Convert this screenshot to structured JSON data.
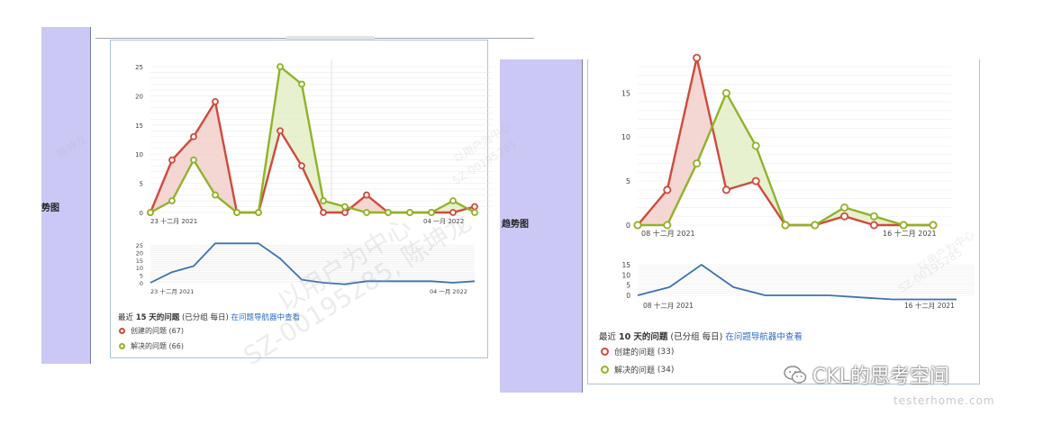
{
  "page": {
    "side_label_left": "势图",
    "side_label_right": "趋势图",
    "brand": "CKL的思考空间",
    "brand_sub": "testerhome.com"
  },
  "watermarks": [
    "以用户为中心",
    "SZ-00195285, 陈坤龙",
    "以用户为中心",
    "SZ-00195285",
    "陈坤龙",
    "以用户为中心",
    "SZ-00195285"
  ],
  "panels": [
    {
      "legend": {
        "title_prefix": "最近",
        "days": "15",
        "title_mid": "天的问题",
        "title_note": "(已分组 每日)",
        "link": "在问题导航器中查看",
        "created_label": "创建的问题",
        "created_count": "(67)",
        "resolved_label": "解决的问题",
        "resolved_count": "(66)"
      }
    },
    {
      "legend": {
        "title_prefix": "最近",
        "days": "10",
        "title_mid": "天的问题",
        "title_note": "(已分组 每日)",
        "link": "在问题导航器中查看",
        "created_label": "创建的问题",
        "created_count": "(33)",
        "resolved_label": "解决的问题",
        "resolved_count": "(34)"
      }
    }
  ],
  "chart_data": [
    {
      "type": "line",
      "x_tick_labels": [
        "23 十二月 2021",
        "04 一月 2022"
      ],
      "ylim": [
        0,
        25
      ],
      "y_ticks": [
        0,
        5,
        10,
        15,
        20,
        25
      ],
      "series": [
        {
          "name": "创建的问题",
          "color": "#d04a3c",
          "values": [
            0,
            9,
            13,
            19,
            0,
            0,
            14,
            8,
            0,
            0,
            3,
            0,
            0,
            0,
            0,
            1
          ]
        },
        {
          "name": "解决的问题",
          "color": "#8fb329",
          "values": [
            0,
            2,
            9,
            3,
            0,
            0,
            25,
            22,
            2,
            1,
            0,
            0,
            0,
            0,
            2,
            0
          ]
        }
      ]
    },
    {
      "type": "line",
      "x_tick_labels": [
        "23 十二月 2021",
        "04 一月 2022"
      ],
      "ylim": [
        0,
        25
      ],
      "y_ticks": [
        0,
        5,
        10,
        15,
        20,
        25
      ],
      "series": [
        {
          "color": "#3b74b0",
          "values": [
            0,
            7,
            11,
            26,
            26,
            26,
            16,
            2,
            0,
            -1,
            1,
            1,
            1,
            1,
            0,
            1
          ]
        }
      ]
    },
    {
      "type": "line",
      "x_tick_labels": [
        "08 十二月 2021",
        "16 十二月 2021"
      ],
      "ylim": [
        0,
        18
      ],
      "y_ticks": [
        0,
        5,
        10,
        15
      ],
      "series": [
        {
          "name": "创建的问题",
          "color": "#d04a3c",
          "values": [
            0,
            4,
            19,
            4,
            5,
            0,
            0,
            1,
            0,
            0,
            0
          ]
        },
        {
          "name": "解决的问题",
          "color": "#8fb329",
          "values": [
            0,
            0,
            7,
            15,
            9,
            0,
            0,
            2,
            1,
            0,
            0
          ]
        }
      ]
    },
    {
      "type": "line",
      "x_tick_labels": [
        "08 十二月 2021",
        "16 十二月 2021"
      ],
      "ylim": [
        0,
        15
      ],
      "y_ticks": [
        0,
        5,
        10,
        15
      ],
      "series": [
        {
          "color": "#3b74b0",
          "values": [
            0,
            4,
            15,
            4,
            0,
            0,
            0,
            -1,
            -2,
            -2,
            -2
          ]
        }
      ]
    }
  ]
}
